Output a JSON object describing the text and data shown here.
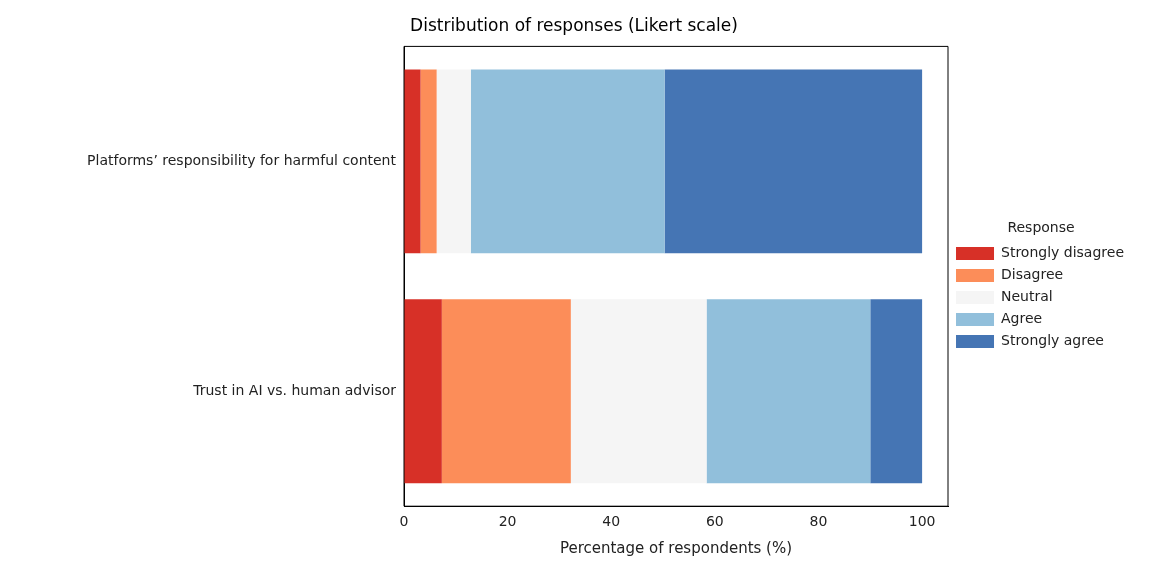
{
  "chart_data": {
    "type": "bar",
    "orientation": "horizontal",
    "stacked": true,
    "title": "Distribution of responses (Likert scale)",
    "xlabel": "Percentage of respondents (%)",
    "legend_title": "Response",
    "legend": "right",
    "grid": false,
    "categories": [
      "Platforms’ responsibility for harmful content",
      "Trust in AI vs. human advisor"
    ],
    "xlim": [
      0,
      105
    ],
    "xticks": [
      0,
      20,
      40,
      60,
      80,
      100
    ],
    "series": [
      {
        "name": "Strongly disagree",
        "color": "#d73027",
        "values": [
          3.2,
          7.3
        ]
      },
      {
        "name": "Disagree",
        "color": "#fc8d59",
        "values": [
          3.1,
          24.9
        ]
      },
      {
        "name": "Neutral",
        "color": "#f5f5f5",
        "values": [
          6.6,
          26.2
        ]
      },
      {
        "name": "Agree",
        "color": "#91bfdb",
        "values": [
          37.4,
          31.6
        ]
      },
      {
        "name": "Strongly agree",
        "color": "#4575b4",
        "values": [
          49.7,
          10.0
        ]
      }
    ]
  }
}
